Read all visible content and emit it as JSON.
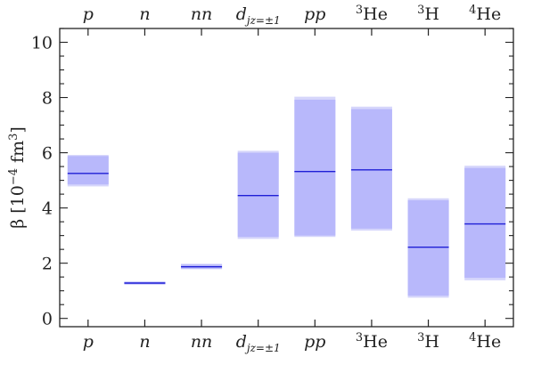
{
  "chart_data": {
    "type": "bar",
    "categories": [
      {
        "key": "p",
        "label_italic": "p",
        "label_sub": "",
        "label_pre_sup": "",
        "label_normal": ""
      },
      {
        "key": "n",
        "label_italic": "n",
        "label_sub": "",
        "label_pre_sup": "",
        "label_normal": ""
      },
      {
        "key": "nn",
        "label_italic": "nn",
        "label_sub": "",
        "label_pre_sup": "",
        "label_normal": ""
      },
      {
        "key": "d",
        "label_italic": "d",
        "label_sub": "jz=±1",
        "label_pre_sup": "",
        "label_normal": ""
      },
      {
        "key": "pp",
        "label_italic": "pp",
        "label_sub": "",
        "label_pre_sup": "",
        "label_normal": ""
      },
      {
        "key": "3He",
        "label_italic": "",
        "label_sub": "",
        "label_pre_sup": "3",
        "label_normal": "He"
      },
      {
        "key": "3H",
        "label_italic": "",
        "label_sub": "",
        "label_pre_sup": "3",
        "label_normal": "H"
      },
      {
        "key": "4He",
        "label_italic": "",
        "label_sub": "",
        "label_pre_sup": "4",
        "label_normal": "He"
      }
    ],
    "series": [
      {
        "values": [
          5.25,
          1.28,
          1.87,
          4.45,
          5.32,
          5.38,
          2.58,
          3.42
        ]
      }
    ],
    "band_inner": [
      [
        4.85,
        5.88
      ],
      [
        1.24,
        1.32
      ],
      [
        1.8,
        1.95
      ],
      [
        2.95,
        6.0
      ],
      [
        3.0,
        7.92
      ],
      [
        3.25,
        7.58
      ],
      [
        0.82,
        4.28
      ],
      [
        1.47,
        5.45
      ]
    ],
    "band_outer": [
      [
        4.78,
        5.92
      ],
      [
        1.22,
        1.34
      ],
      [
        1.78,
        1.98
      ],
      [
        2.88,
        6.07
      ],
      [
        2.95,
        8.03
      ],
      [
        3.18,
        7.67
      ],
      [
        0.75,
        4.35
      ],
      [
        1.38,
        5.53
      ]
    ],
    "ylabel_text": "β [10",
    "ylabel_exp": "−4",
    "ylabel_unit": " fm",
    "ylabel_unit_exp": "3",
    "ylabel_close": "]",
    "ylim": [
      -0.3,
      10.5
    ],
    "yticks": [
      0,
      2,
      4,
      6,
      8,
      10
    ],
    "grid": false,
    "colors": {
      "central_line": "#1f1fd6",
      "band_inner": "#b8b8fb",
      "band_outer": "#d6d6fb",
      "axis": "#222222"
    }
  }
}
